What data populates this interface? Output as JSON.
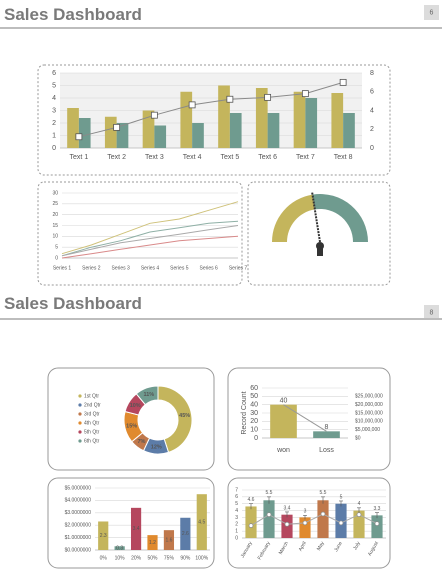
{
  "slides": [
    {
      "title": "Sales Dashboard",
      "page_number": 6
    },
    {
      "title": "Sales Dashboard",
      "page_number": 8
    }
  ],
  "chart_data": [
    {
      "type": "bar",
      "categories": [
        "Text 1",
        "Text 2",
        "Text 3",
        "Text 4",
        "Text 5",
        "Text 6",
        "Text 7",
        "Text 8"
      ],
      "series": [
        {
          "color": "#c4b55c",
          "values": [
            3.2,
            2.5,
            3,
            4.5,
            5,
            4.8,
            4.5,
            4.4
          ]
        },
        {
          "color": "#6f9b8f",
          "values": [
            2.4,
            2,
            1.8,
            2,
            2.8,
            2.8,
            4,
            2.8
          ]
        },
        {
          "type": "line",
          "axis": "y2",
          "color": "#8a8a8a",
          "marker": "square",
          "values": [
            1.2,
            2.2,
            3.5,
            4.6,
            5.2,
            5.4,
            5.8,
            7
          ]
        }
      ],
      "ylim": [
        0,
        6
      ],
      "yticks": [
        0,
        1,
        2,
        3,
        4,
        5,
        6
      ],
      "y2lim": [
        0,
        8
      ],
      "y2ticks": [
        0,
        2,
        4,
        6,
        8
      ],
      "grid": true
    },
    {
      "type": "line",
      "categories": [
        "Series 1",
        "Series 2",
        "Series 3",
        "Series 4",
        "Series 5",
        "Series 6",
        "Series 7"
      ],
      "series": [
        {
          "color": "#cfc27a",
          "values": [
            2,
            6,
            11,
            16,
            18,
            22,
            26
          ]
        },
        {
          "color": "#8fb0a6",
          "values": [
            1,
            5,
            8,
            12,
            14,
            16,
            17
          ]
        },
        {
          "color": "#aaaaaa",
          "values": [
            1,
            4,
            7,
            9,
            11,
            13,
            15
          ]
        },
        {
          "color": "#d98a8a",
          "values": [
            0,
            2,
            4,
            6,
            8,
            9,
            10
          ]
        }
      ],
      "ylim": [
        0,
        30
      ],
      "yticks": [
        0,
        5,
        10,
        15,
        20,
        25,
        30
      ],
      "grid": true
    },
    {
      "type": "gauge",
      "value": 45,
      "range": [
        0,
        100
      ],
      "colors": [
        "#c4b55c",
        "#6f9b8f"
      ]
    },
    {
      "type": "pie",
      "labels": [
        "1st Qtr",
        "2nd Qtr",
        "3rd Qtr",
        "4th Qtr",
        "5th Qtr",
        "6th Qtr"
      ],
      "values": [
        45,
        12,
        7,
        15,
        10,
        11
      ],
      "value_labels": [
        "45%",
        "12%",
        "7%",
        "15%",
        "10%",
        "11%"
      ],
      "colors": [
        "#c4b55c",
        "#5c7ca8",
        "#c0784b",
        "#e08a2e",
        "#b5475e",
        "#6f9b8f"
      ],
      "donut": true
    },
    {
      "type": "bar",
      "categories": [
        "won",
        "Loss"
      ],
      "y_label": "Record Count",
      "series": [
        {
          "color": "#c4b55c",
          "colors": [
            "#c4b55c",
            "#6f9b8f"
          ],
          "values": [
            40,
            8
          ],
          "data_labels": true
        },
        {
          "type": "line",
          "color": "#999999",
          "values": [
            40,
            8
          ]
        }
      ],
      "ylim": [
        0,
        60
      ],
      "yticks": [
        0,
        10,
        20,
        30,
        40,
        50,
        60
      ],
      "y2lim": [
        0,
        30000000
      ],
      "y2ticks": [
        {
          "value": 0,
          "label": "$0"
        },
        {
          "value": 5000000,
          "label": "$5,000,000"
        },
        {
          "value": 10000000,
          "label": "$10,000,000"
        },
        {
          "value": 15000000,
          "label": "$15,000,000"
        },
        {
          "value": 20000000,
          "label": "$20,000,000"
        },
        {
          "value": 25000000,
          "label": "$25,000,000"
        }
      ],
      "grid": true
    },
    {
      "type": "bar",
      "categories": [
        "0%",
        "10%",
        "20%",
        "50%",
        "75%",
        "90%",
        "100%"
      ],
      "series": [
        {
          "colors": [
            "#c4b55c",
            "#6f9b8f",
            "#b5475e",
            "#e08a2e",
            "#c0784b",
            "#5c7ca8",
            "#c4b55c"
          ],
          "values": [
            2.3,
            0.3,
            3.4,
            1.2,
            1.6,
            2.6,
            4.5
          ],
          "data_labels": true
        }
      ],
      "ylim": [
        0,
        5
      ],
      "yticks": [
        {
          "value": 0,
          "label": "$0.0000000"
        },
        {
          "value": 1,
          "label": "$1.0000000"
        },
        {
          "value": 2,
          "label": "$2.0000000"
        },
        {
          "value": 3,
          "label": "$3.0000000"
        },
        {
          "value": 4,
          "label": "$4.0000000"
        },
        {
          "value": 5,
          "label": "$5.0000000"
        }
      ],
      "grid": true
    },
    {
      "type": "bar",
      "categories": [
        "January",
        "February",
        "March",
        "April",
        "May",
        "June",
        "July",
        "August"
      ],
      "series": [
        {
          "colors": [
            "#c4b55c",
            "#6f9b8f",
            "#b5475e",
            "#e08a2e",
            "#c0784b",
            "#5c7ca8",
            "#c4b55c",
            "#6f9b8f"
          ],
          "values": [
            4.6,
            5.5,
            3.4,
            3,
            5.5,
            5,
            4,
            3.3
          ],
          "errors": [
            0.4,
            0.5,
            0.4,
            0.3,
            0.5,
            0.4,
            0.4,
            0.4
          ],
          "data_labels": true
        },
        {
          "type": "line",
          "color": "#aaaaaa",
          "marker": "circle",
          "values": [
            1.8,
            3.4,
            2,
            2.2,
            3.5,
            2.2,
            3.4,
            2.1
          ]
        }
      ],
      "ylim": [
        0,
        7
      ],
      "yticks": [
        0,
        1,
        2,
        3,
        4,
        5,
        6,
        7
      ],
      "grid": true
    }
  ]
}
